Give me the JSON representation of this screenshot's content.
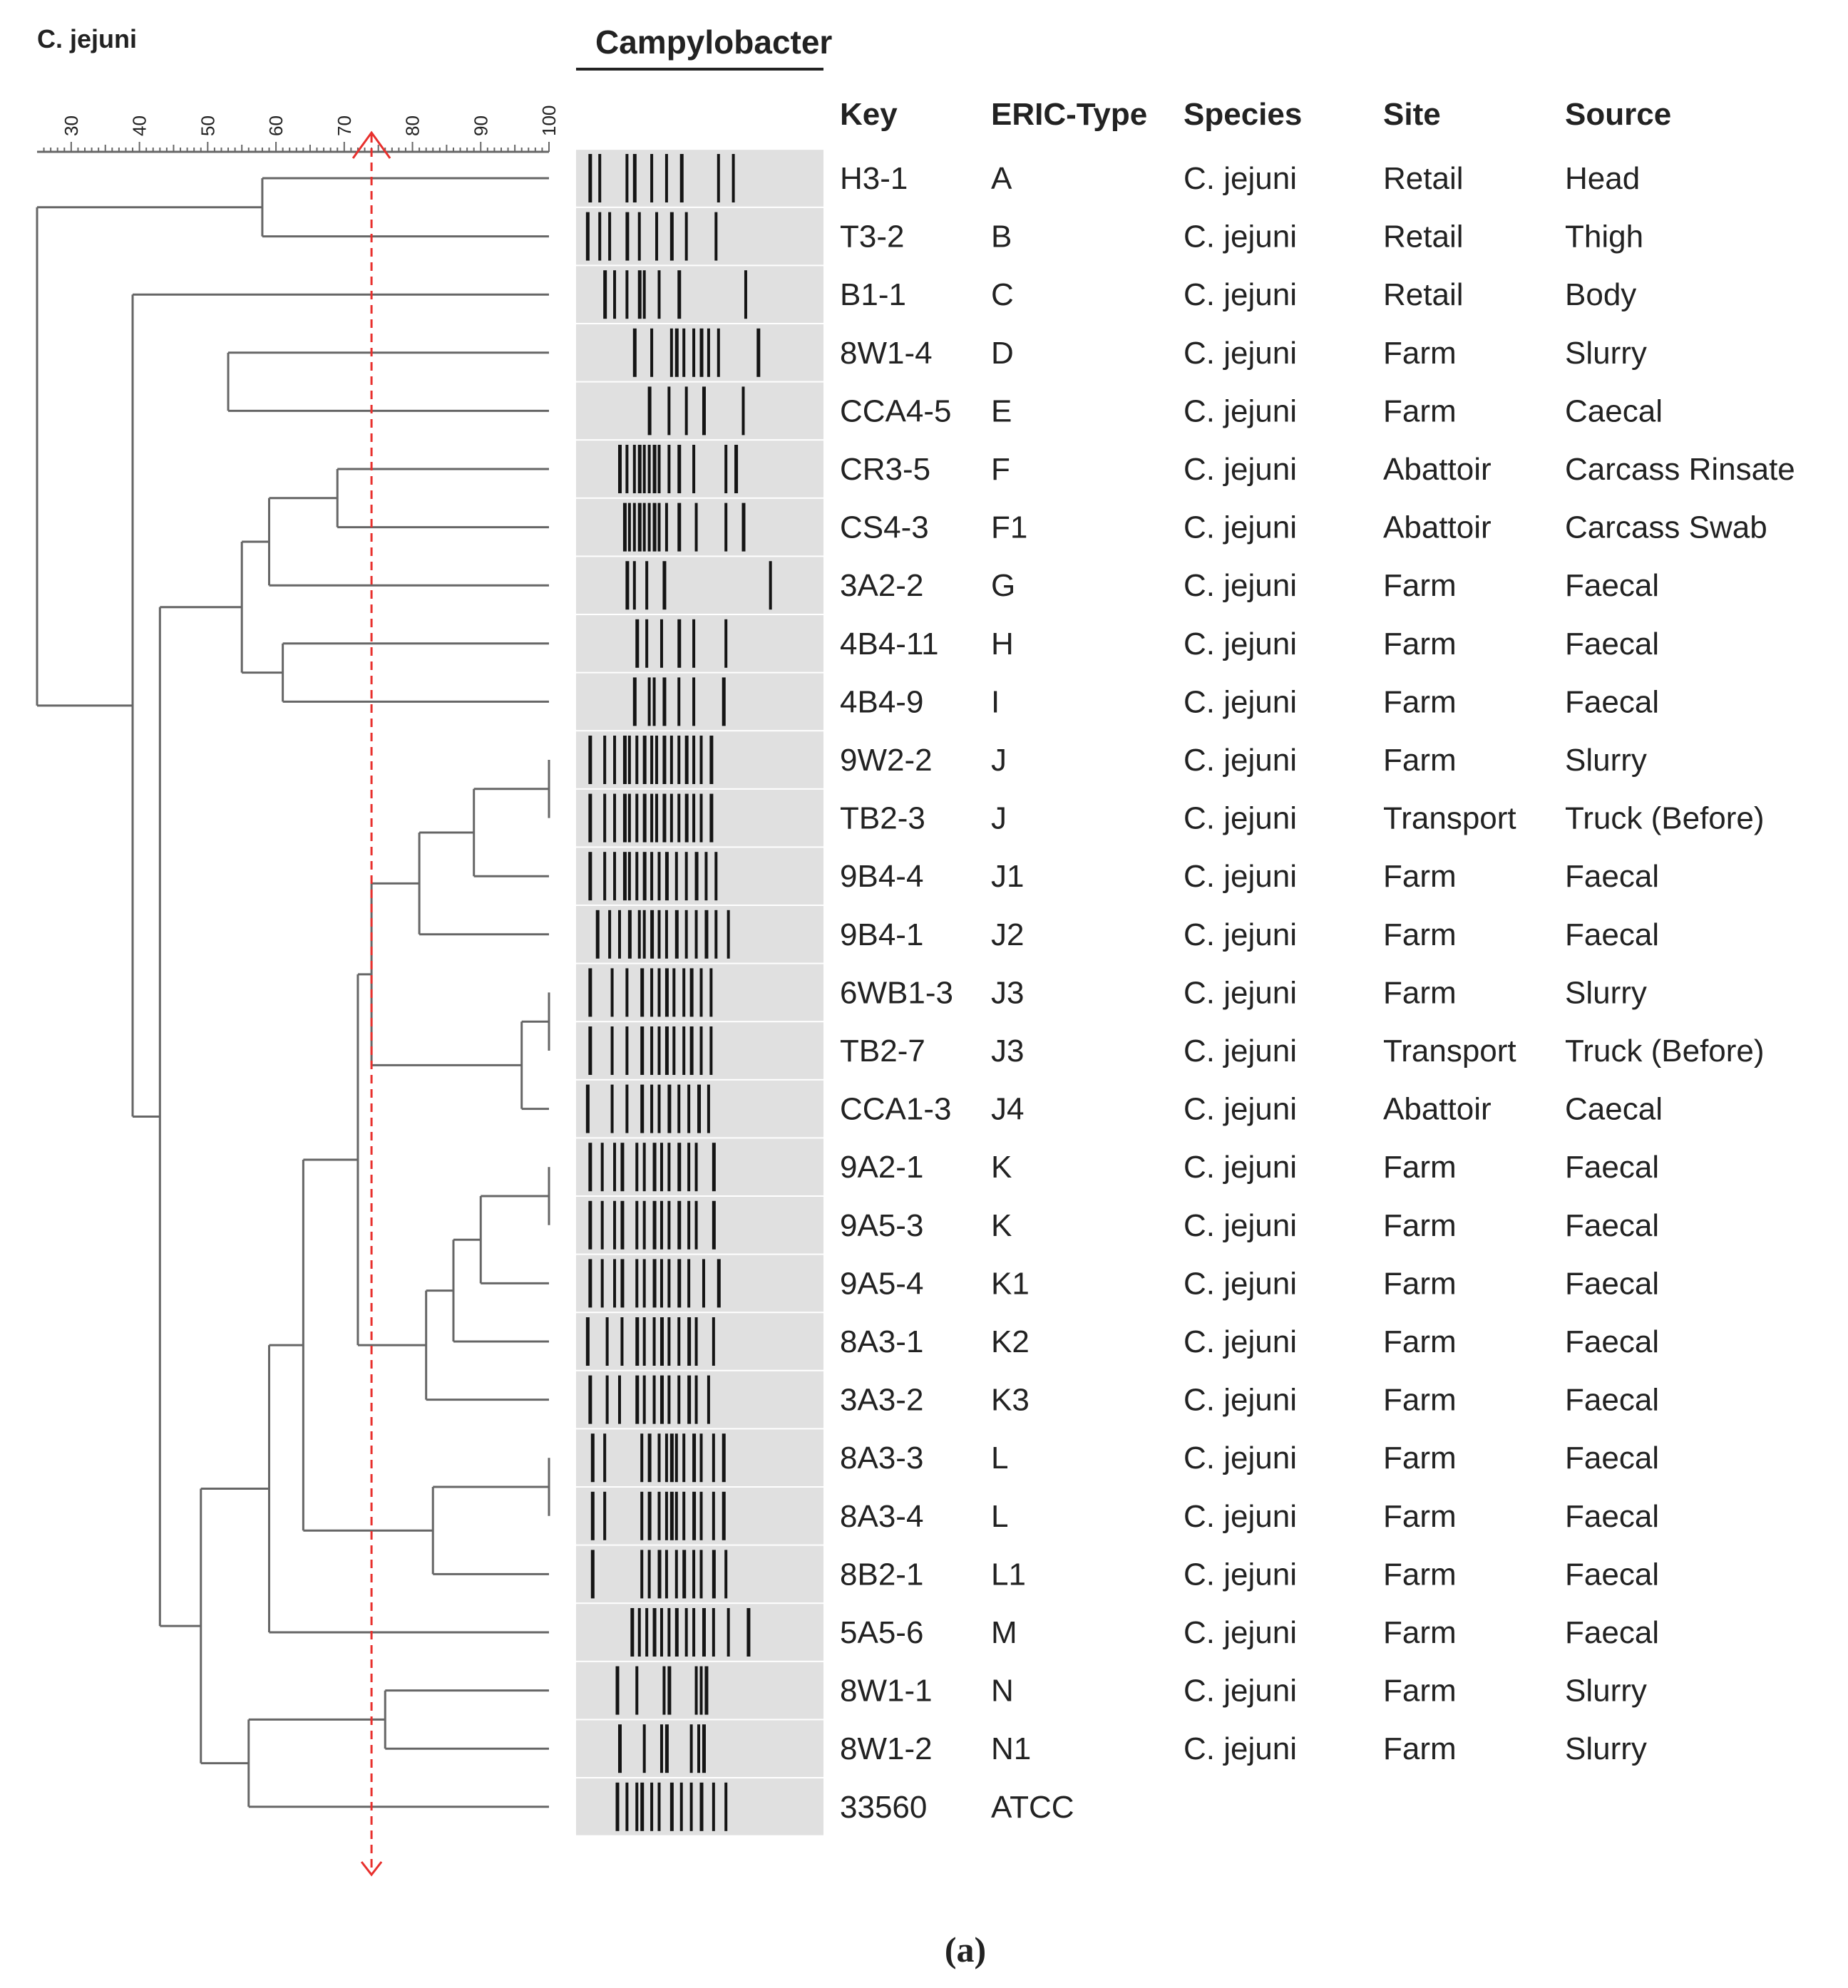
{
  "header": {
    "species_label": "C. jejuni",
    "gel_title": "Campylobacter",
    "scale_ticks": [
      "30",
      "40",
      "50",
      "60",
      "70",
      "80",
      "90",
      "100"
    ],
    "columns": [
      "Key",
      "ERIC-Type",
      "Species",
      "Site",
      "Source"
    ]
  },
  "caption": "(a)",
  "colors": {
    "tree": "#666666",
    "cutoff_line": "#e8302d",
    "gel_background": "#e0e0e0",
    "band": "#141414",
    "text": "#222222"
  },
  "cutoff_percent": 74,
  "dendrogram": {
    "scale_min": 25,
    "scale_max": 100,
    "merges": [
      {
        "a": 0,
        "b": 1,
        "sim": 58
      },
      {
        "a": 3,
        "b": 4,
        "sim": 53
      },
      {
        "a": 5,
        "b": 6,
        "sim": 69
      },
      {
        "a": "n2",
        "b": 7,
        "sim": 59
      },
      {
        "a": 8,
        "b": 9,
        "sim": 61
      },
      {
        "a": "n3",
        "b": "n4",
        "sim": 55
      },
      {
        "a": 10,
        "b": 11,
        "sim": 100
      },
      {
        "a": "n6",
        "b": 12,
        "sim": 89
      },
      {
        "a": "n7",
        "b": 13,
        "sim": 81
      },
      {
        "a": 14,
        "b": 15,
        "sim": 100
      },
      {
        "a": "n9",
        "b": 16,
        "sim": 96
      },
      {
        "a": "n8",
        "b": "n10",
        "sim": 74
      },
      {
        "a": 17,
        "b": 18,
        "sim": 100
      },
      {
        "a": "n12",
        "b": 19,
        "sim": 90
      },
      {
        "a": "n13",
        "b": 20,
        "sim": 86
      },
      {
        "a": "n14",
        "b": 21,
        "sim": 82
      },
      {
        "a": "n11",
        "b": "n15",
        "sim": 72
      },
      {
        "a": 22,
        "b": 23,
        "sim": 100
      },
      {
        "a": "n17",
        "b": 24,
        "sim": 83
      },
      {
        "a": "n16",
        "b": "n18",
        "sim": 64
      },
      {
        "a": "n19",
        "b": 25,
        "sim": 59
      },
      {
        "a": 26,
        "b": 27,
        "sim": 76
      },
      {
        "a": "n21",
        "b": 28,
        "sim": 56
      },
      {
        "a": "n20",
        "b": "n22",
        "sim": 49
      },
      {
        "a": "n23",
        "b": "n5",
        "sim": 43
      },
      {
        "a": "n24",
        "b": 2,
        "sim": 39
      },
      {
        "a": "n0",
        "b": "n25",
        "sim": 25
      }
    ]
  },
  "isolates": [
    {
      "key": "H3-1",
      "eric_type": "A",
      "species": "C. jejuni",
      "site": "Retail",
      "source": "Head",
      "bands": [
        0.05,
        0.09,
        0.2,
        0.23,
        0.3,
        0.36,
        0.42,
        0.57,
        0.63
      ]
    },
    {
      "key": "T3-2",
      "eric_type": "B",
      "species": "C. jejuni",
      "site": "Retail",
      "source": "Thigh",
      "bands": [
        0.04,
        0.09,
        0.13,
        0.2,
        0.25,
        0.32,
        0.38,
        0.44,
        0.56
      ]
    },
    {
      "key": "B1-1",
      "eric_type": "C",
      "species": "C. jejuni",
      "site": "Retail",
      "source": "Body",
      "bands": [
        0.11,
        0.15,
        0.2,
        0.25,
        0.27,
        0.33,
        0.41,
        0.68
      ]
    },
    {
      "key": "8W1-4",
      "eric_type": "D",
      "species": "C. jejuni",
      "site": "Farm",
      "source": "Slurry",
      "bands": [
        0.23,
        0.3,
        0.38,
        0.4,
        0.43,
        0.47,
        0.5,
        0.53,
        0.57,
        0.73
      ]
    },
    {
      "key": "CCA4-5",
      "eric_type": "E",
      "species": "C. jejuni",
      "site": "Farm",
      "source": "Caecal",
      "bands": [
        0.29,
        0.37,
        0.44,
        0.51,
        0.67
      ]
    },
    {
      "key": "CR3-5",
      "eric_type": "F",
      "species": "C. jejuni",
      "site": "Abattoir",
      "source": "Carcass Rinsate",
      "bands": [
        0.17,
        0.2,
        0.23,
        0.25,
        0.27,
        0.29,
        0.31,
        0.33,
        0.37,
        0.41,
        0.47,
        0.6,
        0.64
      ]
    },
    {
      "key": "CS4-3",
      "eric_type": "F1",
      "species": "C. jejuni",
      "site": "Abattoir",
      "source": "Carcass Swab",
      "bands": [
        0.19,
        0.21,
        0.23,
        0.25,
        0.27,
        0.29,
        0.31,
        0.33,
        0.36,
        0.41,
        0.48,
        0.6,
        0.67
      ]
    },
    {
      "key": "3A2-2",
      "eric_type": "G",
      "species": "C. jejuni",
      "site": "Farm",
      "source": "Faecal",
      "bands": [
        0.2,
        0.23,
        0.28,
        0.35,
        0.78
      ]
    },
    {
      "key": "4B4-11",
      "eric_type": "H",
      "species": "C. jejuni",
      "site": "Farm",
      "source": "Faecal",
      "bands": [
        0.24,
        0.28,
        0.34,
        0.41,
        0.47,
        0.6
      ]
    },
    {
      "key": "4B4-9",
      "eric_type": "I",
      "species": "C. jejuni",
      "site": "Farm",
      "source": "Faecal",
      "bands": [
        0.23,
        0.29,
        0.31,
        0.35,
        0.41,
        0.47,
        0.59
      ]
    },
    {
      "key": "9W2-2",
      "eric_type": "J",
      "species": "C. jejuni",
      "site": "Farm",
      "source": "Slurry",
      "bands": [
        0.05,
        0.11,
        0.15,
        0.19,
        0.21,
        0.24,
        0.27,
        0.3,
        0.32,
        0.35,
        0.38,
        0.41,
        0.44,
        0.47,
        0.5,
        0.54
      ]
    },
    {
      "key": "TB2-3",
      "eric_type": "J",
      "species": "C. jejuni",
      "site": "Transport",
      "source": "Truck (Before)",
      "bands": [
        0.05,
        0.11,
        0.15,
        0.19,
        0.21,
        0.24,
        0.27,
        0.3,
        0.32,
        0.35,
        0.38,
        0.41,
        0.44,
        0.47,
        0.5,
        0.54
      ]
    },
    {
      "key": "9B4-4",
      "eric_type": "J1",
      "species": "C. jejuni",
      "site": "Farm",
      "source": "Faecal",
      "bands": [
        0.05,
        0.11,
        0.15,
        0.19,
        0.21,
        0.24,
        0.27,
        0.3,
        0.33,
        0.36,
        0.4,
        0.44,
        0.48,
        0.52,
        0.56
      ]
    },
    {
      "key": "9B4-1",
      "eric_type": "J2",
      "species": "C. jejuni",
      "site": "Farm",
      "source": "Faecal",
      "bands": [
        0.08,
        0.13,
        0.17,
        0.21,
        0.25,
        0.27,
        0.3,
        0.33,
        0.36,
        0.4,
        0.44,
        0.48,
        0.52,
        0.56,
        0.61
      ]
    },
    {
      "key": "6WB1-3",
      "eric_type": "J3",
      "species": "C. jejuni",
      "site": "Farm",
      "source": "Slurry",
      "bands": [
        0.05,
        0.14,
        0.2,
        0.26,
        0.3,
        0.33,
        0.36,
        0.39,
        0.43,
        0.46,
        0.5,
        0.54
      ]
    },
    {
      "key": "TB2-7",
      "eric_type": "J3",
      "species": "C. jejuni",
      "site": "Transport",
      "source": "Truck (Before)",
      "bands": [
        0.05,
        0.14,
        0.2,
        0.26,
        0.3,
        0.33,
        0.36,
        0.39,
        0.43,
        0.46,
        0.5,
        0.54
      ]
    },
    {
      "key": "CCA1-3",
      "eric_type": "J4",
      "species": "C. jejuni",
      "site": "Abattoir",
      "source": "Caecal",
      "bands": [
        0.04,
        0.14,
        0.2,
        0.26,
        0.3,
        0.33,
        0.37,
        0.41,
        0.45,
        0.49,
        0.53
      ]
    },
    {
      "key": "9A2-1",
      "eric_type": "K",
      "species": "C. jejuni",
      "site": "Farm",
      "source": "Faecal",
      "bands": [
        0.05,
        0.1,
        0.15,
        0.18,
        0.24,
        0.27,
        0.31,
        0.34,
        0.37,
        0.41,
        0.45,
        0.48,
        0.55
      ]
    },
    {
      "key": "9A5-3",
      "eric_type": "K",
      "species": "C. jejuni",
      "site": "Farm",
      "source": "Faecal",
      "bands": [
        0.05,
        0.1,
        0.15,
        0.18,
        0.24,
        0.27,
        0.31,
        0.34,
        0.37,
        0.41,
        0.45,
        0.48,
        0.55
      ]
    },
    {
      "key": "9A5-4",
      "eric_type": "K1",
      "species": "C. jejuni",
      "site": "Farm",
      "source": "Faecal",
      "bands": [
        0.05,
        0.1,
        0.15,
        0.18,
        0.24,
        0.27,
        0.31,
        0.34,
        0.37,
        0.41,
        0.45,
        0.51,
        0.57
      ]
    },
    {
      "key": "8A3-1",
      "eric_type": "K2",
      "species": "C. jejuni",
      "site": "Farm",
      "source": "Faecal",
      "bands": [
        0.04,
        0.12,
        0.18,
        0.24,
        0.27,
        0.31,
        0.34,
        0.37,
        0.41,
        0.45,
        0.48,
        0.55
      ]
    },
    {
      "key": "3A3-2",
      "eric_type": "K3",
      "species": "C. jejuni",
      "site": "Farm",
      "source": "Faecal",
      "bands": [
        0.05,
        0.12,
        0.17,
        0.24,
        0.27,
        0.31,
        0.34,
        0.37,
        0.41,
        0.45,
        0.48,
        0.53
      ]
    },
    {
      "key": "8A3-3",
      "eric_type": "L",
      "species": "C. jejuni",
      "site": "Farm",
      "source": "Faecal",
      "bands": [
        0.06,
        0.11,
        0.26,
        0.29,
        0.33,
        0.36,
        0.38,
        0.4,
        0.43,
        0.47,
        0.5,
        0.55,
        0.59
      ]
    },
    {
      "key": "8A3-4",
      "eric_type": "L",
      "species": "C. jejuni",
      "site": "Farm",
      "source": "Faecal",
      "bands": [
        0.06,
        0.11,
        0.26,
        0.29,
        0.33,
        0.36,
        0.38,
        0.4,
        0.43,
        0.47,
        0.5,
        0.55,
        0.59
      ]
    },
    {
      "key": "8B2-1",
      "eric_type": "L1",
      "species": "C. jejuni",
      "site": "Farm",
      "source": "Faecal",
      "bands": [
        0.06,
        0.26,
        0.29,
        0.33,
        0.36,
        0.4,
        0.43,
        0.47,
        0.5,
        0.55,
        0.6
      ]
    },
    {
      "key": "5A5-6",
      "eric_type": "M",
      "species": "C. jejuni",
      "site": "Farm",
      "source": "Faecal",
      "bands": [
        0.22,
        0.25,
        0.28,
        0.31,
        0.34,
        0.37,
        0.4,
        0.44,
        0.47,
        0.51,
        0.55,
        0.61,
        0.69
      ]
    },
    {
      "key": "8W1-1",
      "eric_type": "N",
      "species": "C. jejuni",
      "site": "Farm",
      "source": "Slurry",
      "bands": [
        0.16,
        0.24,
        0.35,
        0.37,
        0.48,
        0.5,
        0.52
      ]
    },
    {
      "key": "8W1-2",
      "eric_type": "N1",
      "species": "C. jejuni",
      "site": "Farm",
      "source": "Slurry",
      "bands": [
        0.17,
        0.27,
        0.34,
        0.36,
        0.46,
        0.49,
        0.51
      ]
    },
    {
      "key": "33560",
      "eric_type": "ATCC",
      "species": "",
      "site": "",
      "source": "",
      "bands": [
        0.16,
        0.2,
        0.24,
        0.26,
        0.3,
        0.33,
        0.38,
        0.42,
        0.46,
        0.5,
        0.55,
        0.6
      ]
    }
  ]
}
